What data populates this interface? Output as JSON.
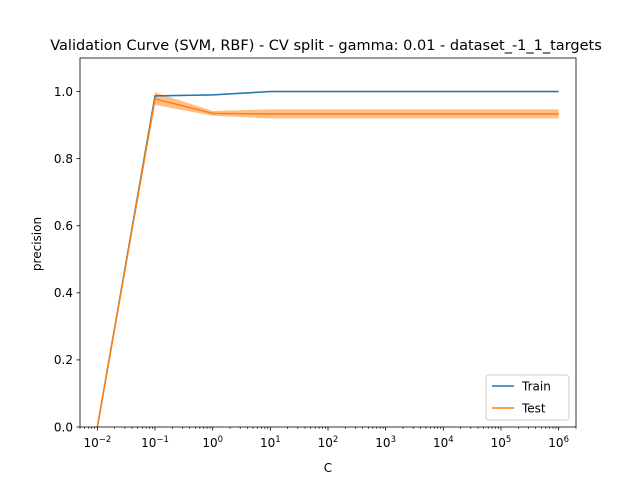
{
  "chart_data": {
    "type": "line",
    "title": "Validation Curve (SVM, RBF) - CV split - gamma: 0.01 - dataset_-1_1_targets",
    "xlabel": "C",
    "ylabel": "precision",
    "xscale": "log",
    "x": [
      0.01,
      0.1,
      1,
      10,
      100,
      1000,
      10000,
      100000,
      1000000
    ],
    "xlim": [
      0.005,
      2000000
    ],
    "ylim": [
      0,
      1.1
    ],
    "x_ticks": [
      {
        "value": 0.01,
        "base": "10",
        "exp": "−2"
      },
      {
        "value": 0.1,
        "base": "10",
        "exp": "−1"
      },
      {
        "value": 1,
        "base": "10",
        "exp": "0"
      },
      {
        "value": 10,
        "base": "10",
        "exp": "1"
      },
      {
        "value": 100,
        "base": "10",
        "exp": "2"
      },
      {
        "value": 1000,
        "base": "10",
        "exp": "3"
      },
      {
        "value": 10000,
        "base": "10",
        "exp": "4"
      },
      {
        "value": 100000,
        "base": "10",
        "exp": "5"
      },
      {
        "value": 1000000,
        "base": "10",
        "exp": "6"
      }
    ],
    "y_ticks": [
      "0.0",
      "0.2",
      "0.4",
      "0.6",
      "0.8",
      "1.0"
    ],
    "grid": false,
    "legend_position": "bottom-right",
    "series": [
      {
        "name": "Train",
        "color": "#1f77b4",
        "values": [
          0.0,
          0.987,
          0.99,
          1.0,
          1.0,
          1.0,
          1.0,
          1.0,
          1.0
        ],
        "band_lower": [
          0.0,
          0.985,
          0.988,
          0.998,
          0.998,
          0.998,
          0.998,
          0.998,
          0.998
        ],
        "band_upper": [
          0.0,
          0.989,
          0.992,
          1.0,
          1.0,
          1.0,
          1.0,
          1.0,
          1.0
        ]
      },
      {
        "name": "Test",
        "color": "#ff7f0e",
        "values": [
          0.0,
          0.978,
          0.935,
          0.933,
          0.933,
          0.933,
          0.933,
          0.933,
          0.933
        ],
        "band_lower": [
          0.0,
          0.96,
          0.928,
          0.92,
          0.92,
          0.92,
          0.92,
          0.92,
          0.92
        ],
        "band_upper": [
          0.0,
          0.998,
          0.942,
          0.947,
          0.947,
          0.947,
          0.947,
          0.947,
          0.947
        ]
      }
    ]
  }
}
